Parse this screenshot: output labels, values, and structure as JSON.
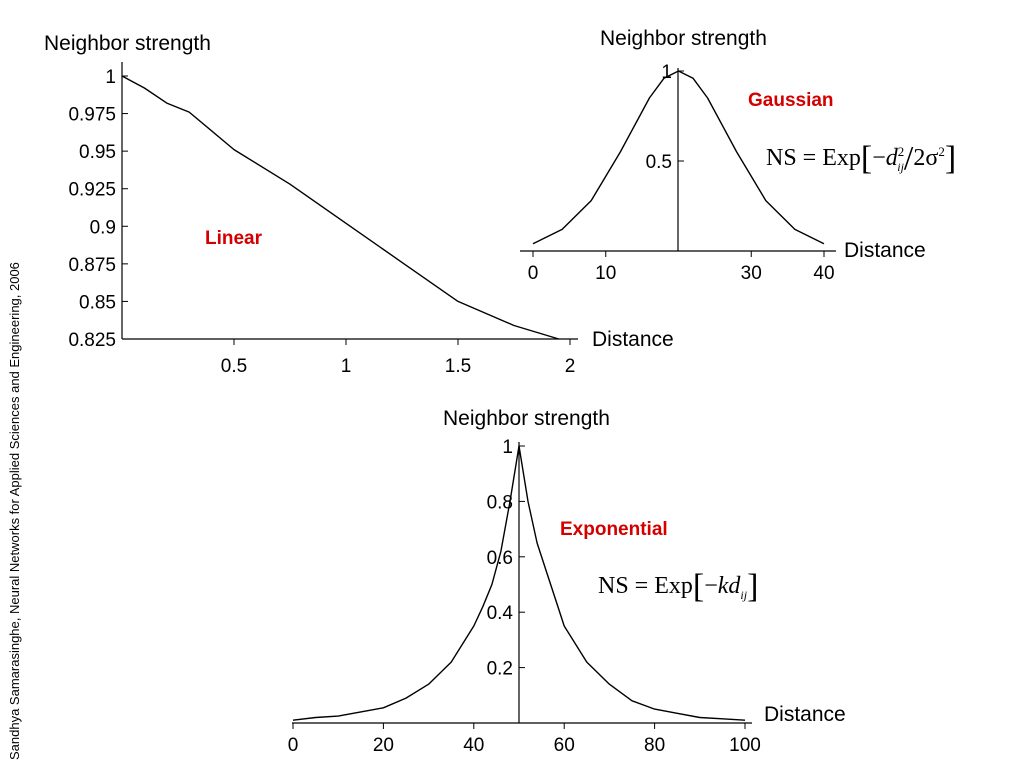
{
  "source_note": "Sandhya Samarasinghe, Neural Networks for Applied Sciences and Engineering, 2006",
  "chart_data": [
    {
      "type": "line",
      "name_label": "Linear",
      "ylabel": "Neighbor strength",
      "xlabel": "Distance",
      "xlim": [
        0,
        2
      ],
      "ylim": [
        0.825,
        1
      ],
      "x_ticks": [
        0.5,
        1,
        1.5,
        2
      ],
      "x_tick_labels": [
        "0.5",
        "1",
        "1.5",
        "2"
      ],
      "y_ticks": [
        1,
        0.975,
        0.95,
        0.925,
        0.9,
        0.875,
        0.85,
        0.825
      ],
      "y_tick_labels": [
        "1",
        "0.975",
        "0.95",
        "0.925",
        "0.9",
        "0.875",
        "0.85",
        "0.825"
      ],
      "x": [
        0,
        0.1,
        0.2,
        0.3,
        0.5,
        0.75,
        1.0,
        1.25,
        1.5,
        1.75,
        1.95
      ],
      "y": [
        1.0,
        0.992,
        0.982,
        0.976,
        0.951,
        0.928,
        0.902,
        0.876,
        0.85,
        0.834,
        0.825
      ]
    },
    {
      "type": "line",
      "name_label": "Gaussian",
      "formula": {
        "lhs": "NS = Exp",
        "minus": "−",
        "var": "d",
        "sub": "ij",
        "sup": "2",
        "slash": "/",
        "denom": "2σ",
        "denom_sup": "2"
      },
      "ylabel": "Neighbor strength",
      "xlabel": "Distance",
      "xlim": [
        0,
        40
      ],
      "ylim": [
        0,
        1
      ],
      "x_ticks": [
        0,
        10,
        30,
        40
      ],
      "x_tick_labels": [
        "0",
        "10",
        "30",
        "40"
      ],
      "y_ticks": [
        0.5,
        1
      ],
      "y_tick_labels": [
        "0.5",
        "1"
      ],
      "x": [
        0,
        4,
        8,
        12,
        16,
        18,
        20,
        22,
        24,
        28,
        32,
        36,
        40
      ],
      "y": [
        0.04,
        0.12,
        0.28,
        0.55,
        0.85,
        0.96,
        1.0,
        0.96,
        0.85,
        0.55,
        0.28,
        0.12,
        0.04
      ]
    },
    {
      "type": "line",
      "name_label": "Exponential",
      "formula": {
        "lhs": "NS = Exp",
        "minus": "−",
        "k": "k",
        "var": "d",
        "sub": "ij"
      },
      "ylabel": "Neighbor strength",
      "xlabel": "Distance",
      "xlim": [
        0,
        100
      ],
      "ylim": [
        0,
        1
      ],
      "x_ticks": [
        0,
        20,
        40,
        60,
        80,
        100
      ],
      "x_tick_labels": [
        "0",
        "20",
        "40",
        "60",
        "80",
        "100"
      ],
      "y_ticks": [
        0.2,
        0.4,
        0.6,
        0.8,
        1
      ],
      "y_tick_labels": [
        "0.2",
        "0.4",
        "0.6",
        "0.8",
        "1"
      ],
      "x": [
        0,
        5,
        10,
        15,
        20,
        25,
        30,
        35,
        40,
        42,
        44,
        46,
        48,
        50,
        52,
        54,
        56,
        58,
        60,
        65,
        70,
        75,
        80,
        85,
        90,
        95,
        100
      ],
      "y": [
        0.01,
        0.02,
        0.025,
        0.04,
        0.055,
        0.09,
        0.14,
        0.22,
        0.35,
        0.42,
        0.5,
        0.62,
        0.8,
        1.0,
        0.8,
        0.65,
        0.55,
        0.45,
        0.35,
        0.22,
        0.14,
        0.08,
        0.05,
        0.035,
        0.02,
        0.015,
        0.01
      ]
    }
  ]
}
